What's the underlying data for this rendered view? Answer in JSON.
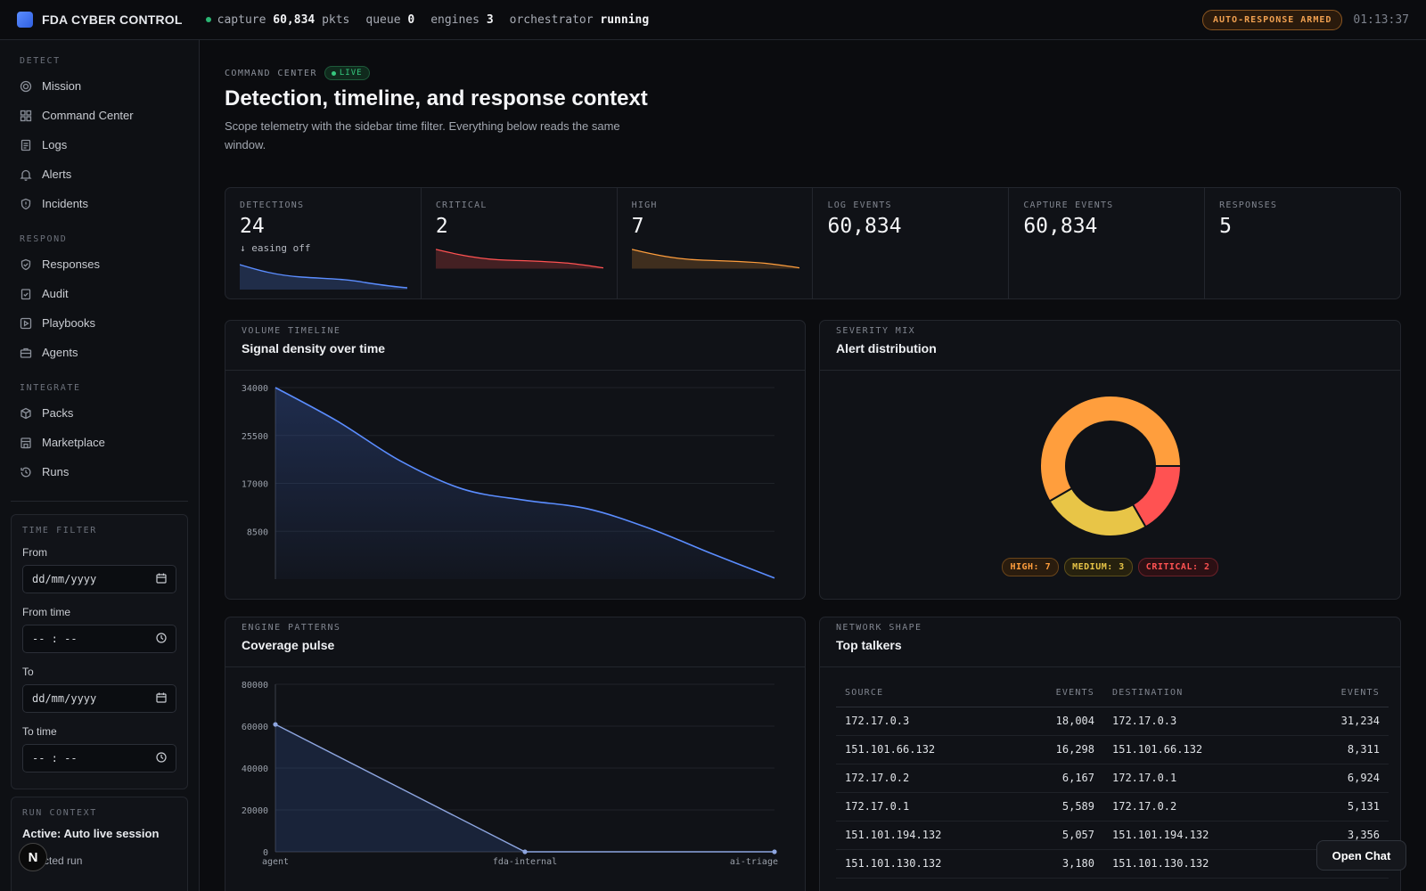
{
  "topbar": {
    "brand": "FDA CYBER CONTROL",
    "capture_label": "capture",
    "capture_value": "60,834",
    "capture_unit": "pkts",
    "queue_label": "queue",
    "queue_value": "0",
    "engines_label": "engines",
    "engines_value": "3",
    "orchestrator_label": "orchestrator",
    "orchestrator_value": "running",
    "armed": "AUTO-RESPONSE ARMED",
    "clock": "01:13:37"
  },
  "sidebar": {
    "groups": [
      {
        "label": "DETECT",
        "items": [
          "Mission",
          "Command Center",
          "Logs",
          "Alerts",
          "Incidents"
        ]
      },
      {
        "label": "RESPOND",
        "items": [
          "Responses",
          "Audit",
          "Playbooks",
          "Agents"
        ]
      },
      {
        "label": "INTEGRATE",
        "items": [
          "Packs",
          "Marketplace",
          "Runs"
        ]
      }
    ],
    "time_filter": {
      "caption": "TIME FILTER",
      "from_label": "From",
      "from_placeholder": "dd/mm/yyyy",
      "from_time_label": "From time",
      "from_time_placeholder": "-- : --",
      "to_label": "To",
      "to_placeholder": "dd/mm/yyyy",
      "to_time_label": "To time",
      "to_time_placeholder": "-- : --"
    },
    "run_context": {
      "caption": "RUN CONTEXT",
      "active": "Active: Auto live session",
      "selected_label": "Selected run"
    },
    "avatar": "N"
  },
  "header": {
    "eyebrow": "COMMAND CENTER",
    "live": "LIVE",
    "title": "Detection, timeline, and response context",
    "description": "Scope telemetry with the sidebar time filter. Everything below reads the same window."
  },
  "kpis": [
    {
      "label": "DETECTIONS",
      "value": "24",
      "note": "↓ easing off"
    },
    {
      "label": "CRITICAL",
      "value": "2",
      "note": ""
    },
    {
      "label": "HIGH",
      "value": "7",
      "note": ""
    },
    {
      "label": "LOG EVENTS",
      "value": "60,834",
      "note": ""
    },
    {
      "label": "CAPTURE EVENTS",
      "value": "60,834",
      "note": ""
    },
    {
      "label": "RESPONSES",
      "value": "5",
      "note": ""
    }
  ],
  "volume": {
    "caption": "VOLUME TIMELINE",
    "title": "Signal density over time"
  },
  "severity": {
    "caption": "SEVERITY MIX",
    "title": "Alert distribution",
    "legend": [
      "HIGH: 7",
      "MEDIUM: 3",
      "CRITICAL: 2"
    ]
  },
  "engine": {
    "caption": "ENGINE PATTERNS",
    "title": "Coverage pulse"
  },
  "network": {
    "caption": "NETWORK SHAPE",
    "title": "Top talkers",
    "columns": [
      "SOURCE",
      "EVENTS",
      "DESTINATION",
      "EVENTS"
    ],
    "rows": [
      [
        "172.17.0.3",
        "18,004",
        "172.17.0.3",
        "31,234"
      ],
      [
        "151.101.66.132",
        "16,298",
        "151.101.66.132",
        "8,311"
      ],
      [
        "172.17.0.2",
        "6,167",
        "172.17.0.1",
        "6,924"
      ],
      [
        "172.17.0.1",
        "5,589",
        "172.17.0.2",
        "5,131"
      ],
      [
        "151.101.194.132",
        "5,057",
        "151.101.194.132",
        "3,356"
      ],
      [
        "151.101.130.132",
        "3,180",
        "151.101.130.132",
        ""
      ]
    ]
  },
  "open_chat": "Open Chat",
  "colors": {
    "accent_blue": "#5b8dff",
    "high": "#ff9e3d",
    "medium": "#e8c547",
    "critical": "#ff5252"
  },
  "chart_data": [
    {
      "type": "area",
      "title": "Signal density over time",
      "yticks": [
        8500,
        17000,
        25500,
        34000
      ],
      "ylim": [
        0,
        34000
      ],
      "series": [
        {
          "values": [
            34000,
            28000,
            21000,
            16000,
            14000,
            12500,
            9000,
            4500,
            200
          ]
        }
      ]
    },
    {
      "type": "pie",
      "title": "Alert distribution",
      "categories": [
        "HIGH",
        "MEDIUM",
        "CRITICAL"
      ],
      "values": [
        7,
        3,
        2
      ],
      "colors": [
        "#ff9e3d",
        "#e8c547",
        "#ff5252"
      ]
    },
    {
      "type": "area",
      "title": "Coverage pulse",
      "categories": [
        "agent",
        "fda-internal",
        "ai-triage"
      ],
      "yticks": [
        0,
        20000,
        40000,
        60000,
        80000
      ],
      "ylim": [
        0,
        80000
      ],
      "series": [
        {
          "values": [
            60834,
            0,
            0
          ]
        }
      ]
    }
  ]
}
